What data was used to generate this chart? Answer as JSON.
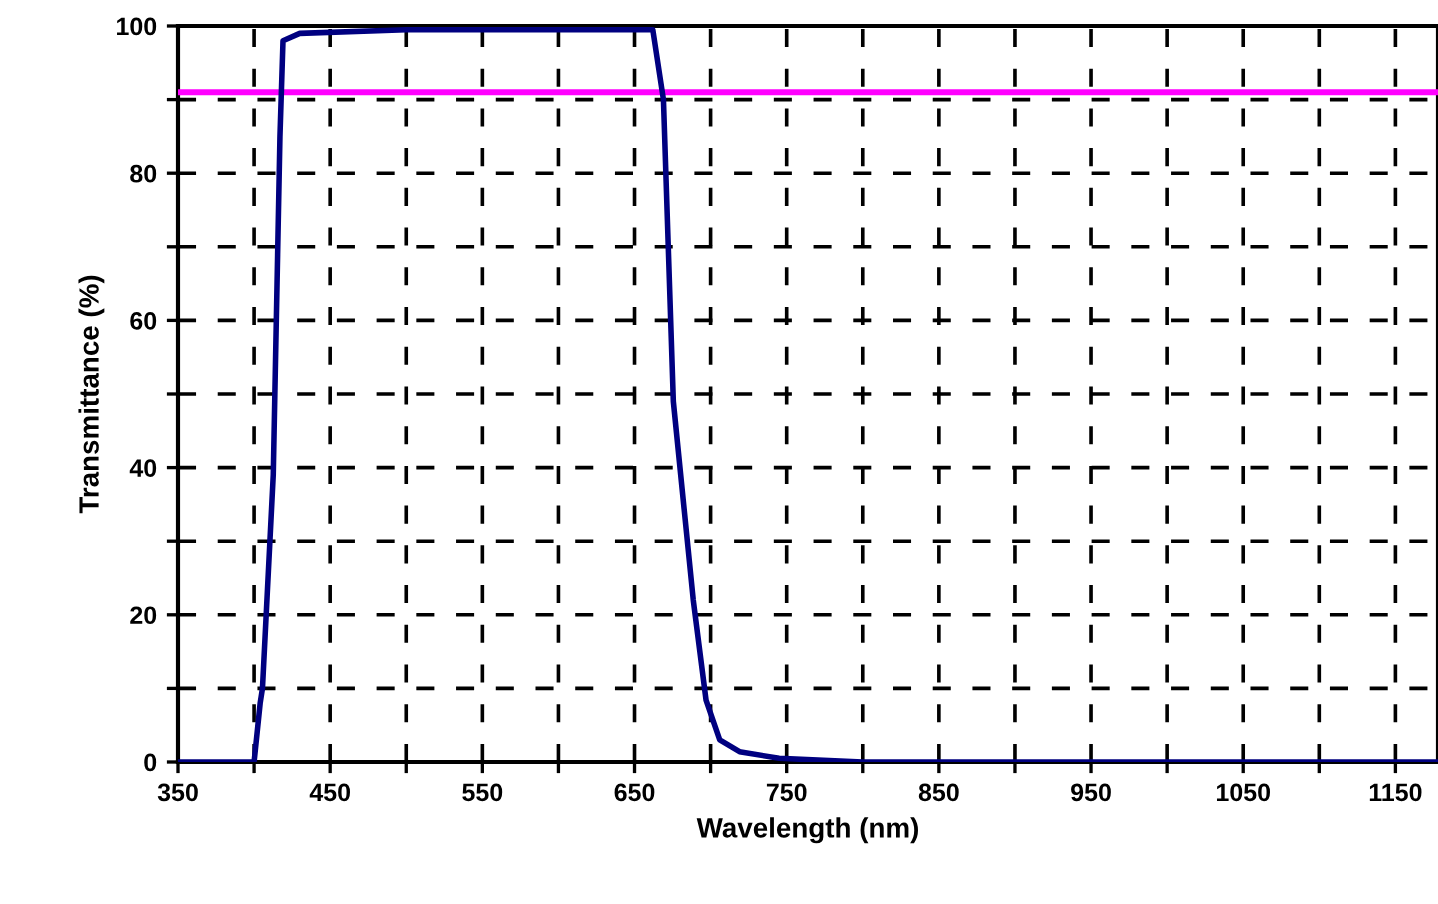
{
  "chart_data": {
    "type": "line",
    "xlabel": "Wavelength (nm)",
    "ylabel": "Transmittance (%)",
    "x": [
      350,
      400,
      404,
      405.5,
      412.6,
      417,
      419,
      430,
      500,
      550,
      600,
      662,
      669,
      675.5,
      688.6,
      697,
      706,
      719,
      745,
      800,
      900,
      1000,
      1100,
      1178
    ],
    "series": [
      {
        "color": "#000080",
        "values": [
          0,
          0,
          8,
          10,
          39,
          85,
          98,
          99,
          99.5,
          99.5,
          99.5,
          99.5,
          90,
          49,
          22,
          8.4,
          3,
          1.4,
          0.5,
          0,
          0,
          0,
          0,
          0
        ]
      }
    ],
    "xlim": [
      350,
      1178
    ],
    "ylim": [
      0,
      100
    ],
    "xticks": [
      350,
      {
        "value": 400,
        "label": null
      },
      450,
      {
        "value": 500,
        "label": null
      },
      550,
      {
        "value": 600,
        "label": null
      },
      650,
      {
        "value": 700,
        "label": null
      },
      750,
      {
        "value": 800,
        "label": null
      },
      850,
      {
        "value": 900,
        "label": null
      },
      950,
      {
        "value": 1000,
        "label": null
      },
      1050,
      {
        "value": 1100,
        "label": null
      },
      1150
    ],
    "yticks": [
      0,
      {
        "value": 10,
        "label": null
      },
      20,
      {
        "value": 30,
        "label": null
      },
      40,
      {
        "value": 50,
        "label": null
      },
      60,
      {
        "value": 70,
        "label": null
      },
      80,
      {
        "value": 90,
        "label": null
      },
      100
    ],
    "grid": true,
    "line_style": "solid",
    "marker": "none",
    "ref_lines": [
      {
        "axis": "y",
        "value": 91,
        "color": "#ff00ff",
        "line_style": "solid"
      }
    ]
  }
}
